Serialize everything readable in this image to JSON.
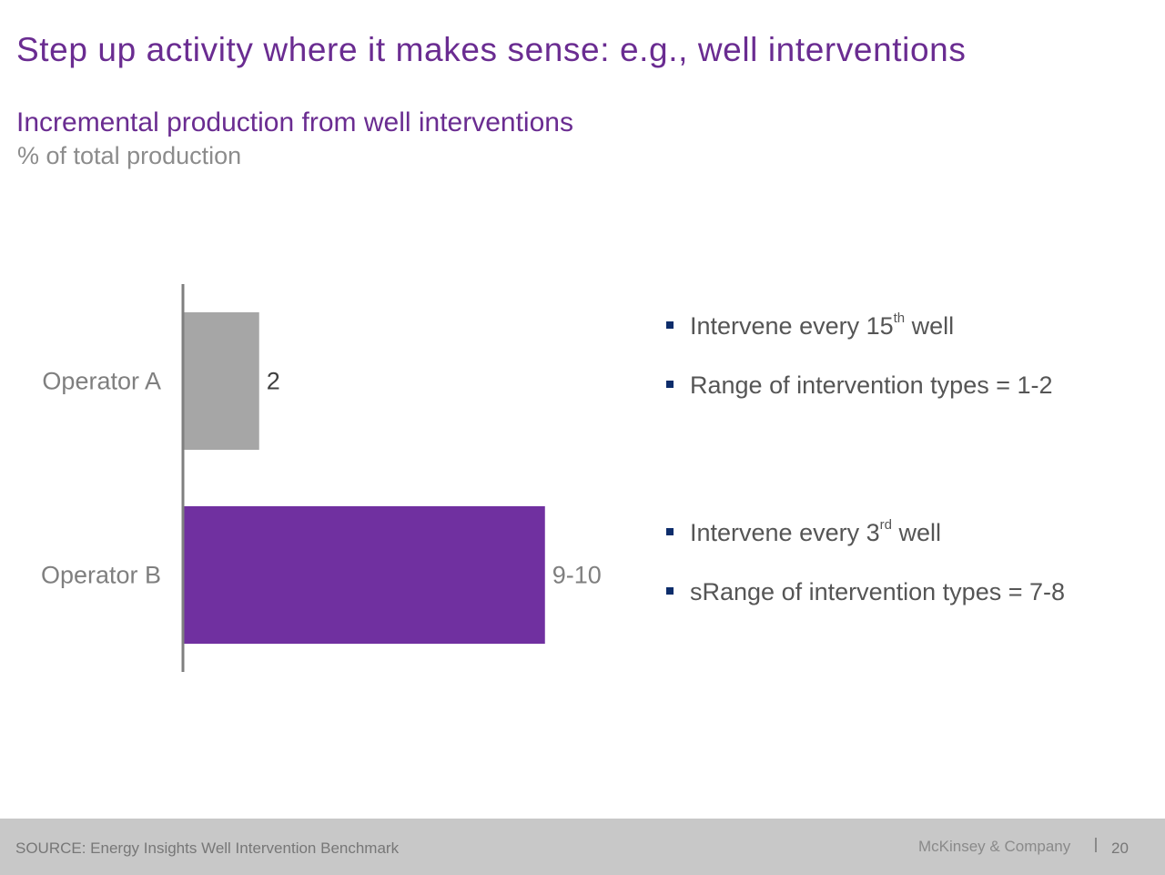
{
  "slide_title": "Step up activity where it makes sense: e.g., well interventions",
  "chart_data": {
    "type": "bar",
    "orientation": "horizontal",
    "title": "Incremental production from well interventions",
    "subtitle": "% of total production",
    "categories": [
      "Operator A",
      "Operator B"
    ],
    "values": [
      2,
      9.5
    ],
    "value_labels": [
      "2",
      "9-10"
    ],
    "colors": [
      "#a6a6a6",
      "#7030a0"
    ],
    "xlim": [
      0,
      10.7
    ],
    "grid": false
  },
  "bullets": {
    "operator_a": [
      {
        "text": "Intervene every 15",
        "sup": "th",
        "after": " well"
      },
      {
        "text": "Range of intervention types = 1-2",
        "sup": "",
        "after": ""
      }
    ],
    "operator_b": [
      {
        "text": "Intervene every 3",
        "sup": "rd",
        "after": " well"
      },
      {
        "text": "sRange of intervention types = 7-8",
        "sup": "",
        "after": ""
      }
    ]
  },
  "footer": {
    "source": "SOURCE: Energy Insights Well Intervention Benchmark",
    "brand": "McKinsey & Company",
    "page_number": "20"
  }
}
